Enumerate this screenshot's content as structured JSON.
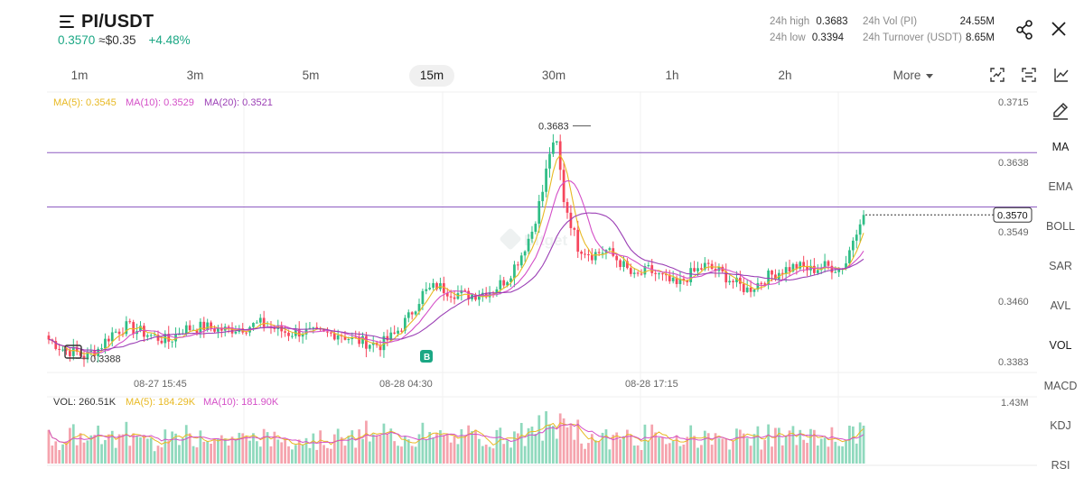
{
  "header": {
    "pair": "PI/USDT",
    "price": "0.3570",
    "usd_price": "≈$0.35",
    "change": "+4.48%",
    "high_label": "24h high",
    "high_value": "0.3683",
    "low_label": "24h low",
    "low_value": "0.3394",
    "vol_label": "24h Vol (PI)",
    "vol_value": "24.55M",
    "turnover_label": "24h Turnover (USDT)",
    "turnover_value": "8.65M"
  },
  "timeframes": [
    {
      "label": "1m",
      "active": false
    },
    {
      "label": "3m",
      "active": false
    },
    {
      "label": "5m",
      "active": false
    },
    {
      "label": "15m",
      "active": true
    },
    {
      "label": "30m",
      "active": false
    },
    {
      "label": "1h",
      "active": false
    },
    {
      "label": "2h",
      "active": false
    },
    {
      "label": "More",
      "active": false
    }
  ],
  "indicators": [
    "MA",
    "EMA",
    "BOLL",
    "SAR",
    "AVL",
    "VOL",
    "MACD",
    "KDJ",
    "RSI"
  ],
  "active_indicators": [
    "MA",
    "VOL"
  ],
  "icons": {
    "menu": "menu-icon",
    "share": "share-icon",
    "close": "close-icon",
    "chart_type": "chart-type-icon",
    "settings": "chart-settings-icon",
    "indicator": "indicator-icon",
    "draw": "draw-pencil-icon"
  },
  "colors": {
    "up": "#2ebd85",
    "down": "#f6465d",
    "ma5": "#e8b923",
    "ma10": "#d44fc7",
    "ma20": "#9b3fb5",
    "hline": "#8e5cc2",
    "accent": "#1ba784"
  },
  "chart_data": {
    "type": "candlestick",
    "interval": "15m",
    "ma_legend": {
      "ma5": "MA(5): 0.3545",
      "ma10": "MA(10): 0.3529",
      "ma20": "MA(20): 0.3521"
    },
    "y_ticks": [
      "0.3715",
      "0.3638",
      "0.3549",
      "0.3460",
      "0.3383"
    ],
    "ylim": [
      0.337,
      0.3726
    ],
    "x_ticks": [
      "08-27 15:45",
      "08-28 04:30",
      "08-28 17:15"
    ],
    "last_price_label": "0.3570",
    "last_price": 0.357,
    "high_marker": {
      "label": "0.3683",
      "value": 0.3683
    },
    "low_marker": {
      "label": "0.3388",
      "value": 0.3388
    },
    "horizontal_lines": [
      0.3649,
      0.358
    ],
    "buy_marker": "B",
    "watermark": "Bitget",
    "ohlc_anchors": [
      [
        0,
        0.3412
      ],
      [
        4,
        0.34
      ],
      [
        8,
        0.3395
      ],
      [
        10,
        0.339
      ],
      [
        14,
        0.34
      ],
      [
        18,
        0.342
      ],
      [
        22,
        0.3428
      ],
      [
        26,
        0.3422
      ],
      [
        30,
        0.3415
      ],
      [
        34,
        0.341
      ],
      [
        38,
        0.3425
      ],
      [
        44,
        0.3428
      ],
      [
        50,
        0.3424
      ],
      [
        56,
        0.3428
      ],
      [
        60,
        0.3432
      ],
      [
        64,
        0.3426
      ],
      [
        68,
        0.342
      ],
      [
        72,
        0.3422
      ],
      [
        78,
        0.3418
      ],
      [
        82,
        0.342
      ],
      [
        86,
        0.3412
      ],
      [
        90,
        0.3408
      ],
      [
        94,
        0.3405
      ],
      [
        98,
        0.3418
      ],
      [
        102,
        0.344
      ],
      [
        106,
        0.347
      ],
      [
        110,
        0.348
      ],
      [
        114,
        0.3472
      ],
      [
        118,
        0.3468
      ],
      [
        122,
        0.347
      ],
      [
        126,
        0.3475
      ],
      [
        130,
        0.349
      ],
      [
        134,
        0.352
      ],
      [
        137,
        0.355
      ],
      [
        140,
        0.36
      ],
      [
        142,
        0.365
      ],
      [
        144,
        0.366
      ],
      [
        146,
        0.359
      ],
      [
        148,
        0.356
      ],
      [
        150,
        0.353
      ],
      [
        154,
        0.352
      ],
      [
        158,
        0.3525
      ],
      [
        162,
        0.351
      ],
      [
        166,
        0.349
      ],
      [
        170,
        0.35
      ],
      [
        174,
        0.349
      ],
      [
        178,
        0.348
      ],
      [
        182,
        0.3495
      ],
      [
        186,
        0.3505
      ],
      [
        190,
        0.3498
      ],
      [
        194,
        0.3485
      ],
      [
        198,
        0.3475
      ],
      [
        200,
        0.348
      ],
      [
        204,
        0.3492
      ],
      [
        208,
        0.35
      ],
      [
        212,
        0.3505
      ],
      [
        216,
        0.35
      ],
      [
        220,
        0.3505
      ],
      [
        224,
        0.3502
      ],
      [
        226,
        0.351
      ],
      [
        228,
        0.354
      ],
      [
        230,
        0.3565
      ],
      [
        231,
        0.357
      ]
    ],
    "vol_legend": {
      "vol": "VOL: 260.51K",
      "ma5": "MA(5): 184.29K",
      "ma10": "MA(10): 181.90K"
    },
    "vol_axis_max": "1.43M"
  }
}
